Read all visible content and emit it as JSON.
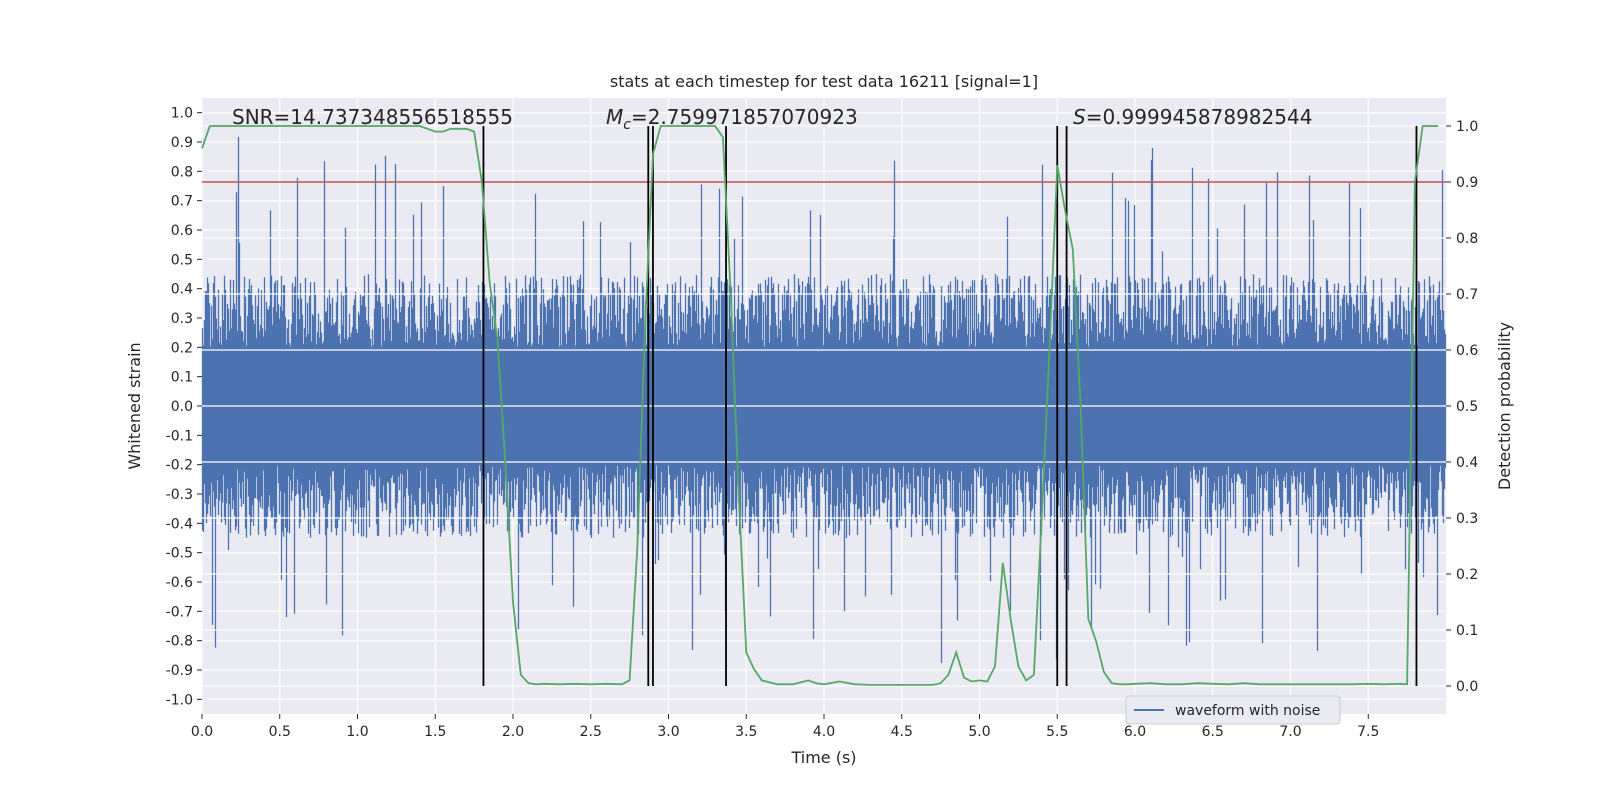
{
  "chart_data": {
    "type": "line",
    "title": "stats at each timestep for test data 16211 [signal=1]",
    "xlabel": "Time (s)",
    "ylabel_left": "Whitened strain",
    "ylabel_right": "Detection probability",
    "xlim": [
      0.0,
      8.0
    ],
    "ylim_left": [
      -1.05,
      1.05
    ],
    "ylim_right": [
      -0.05,
      1.05
    ],
    "x_ticks": [
      "0.0",
      "0.5",
      "1.0",
      "1.5",
      "2.0",
      "2.5",
      "3.0",
      "3.5",
      "4.0",
      "4.5",
      "5.0",
      "5.5",
      "6.0",
      "6.5",
      "7.0",
      "7.5"
    ],
    "y_ticks_left": [
      "1.0",
      "0.9",
      "0.8",
      "0.7",
      "0.6",
      "0.5",
      "0.4",
      "0.3",
      "0.2",
      "0.1",
      "0.0",
      "-0.1",
      "-0.2",
      "-0.3",
      "-0.4",
      "-0.5",
      "-0.6",
      "-0.7",
      "-0.8",
      "-0.9",
      "-1.0"
    ],
    "y_ticks_right": [
      "1.0",
      "0.9",
      "0.8",
      "0.7",
      "0.6",
      "0.5",
      "0.4",
      "0.3",
      "0.2",
      "0.1",
      "0.0"
    ],
    "grid": true,
    "legend_position": "lower-right",
    "annotations": {
      "snr": "SNR=14.737348556518555",
      "mc_symbol": "M",
      "mc_sub": "c",
      "mc_value": "=2.759971857070923",
      "s_symbol": "S",
      "s_value": "=0.999945878982544"
    },
    "series": [
      {
        "name": "waveform with noise",
        "axis": "left",
        "color": "#4c72b0",
        "style": "dense noise",
        "envelope_typical": [
          -0.45,
          0.45
        ]
      },
      {
        "axis": "right",
        "color": "#55a868",
        "x": [
          0.0,
          0.05,
          0.1,
          0.2,
          0.3,
          0.4,
          0.5,
          0.6,
          0.7,
          0.8,
          0.9,
          1.0,
          1.1,
          1.2,
          1.3,
          1.4,
          1.5,
          1.55,
          1.6,
          1.7,
          1.75,
          1.8,
          1.85,
          1.9,
          1.95,
          2.0,
          2.05,
          2.1,
          2.15,
          2.2,
          2.3,
          2.4,
          2.5,
          2.6,
          2.7,
          2.75,
          2.8,
          2.85,
          2.9,
          2.95,
          3.0,
          3.1,
          3.2,
          3.3,
          3.35,
          3.4,
          3.45,
          3.5,
          3.55,
          3.6,
          3.7,
          3.8,
          3.9,
          3.95,
          4.0,
          4.1,
          4.2,
          4.3,
          4.4,
          4.5,
          4.6,
          4.7,
          4.75,
          4.8,
          4.85,
          4.9,
          4.95,
          5.0,
          5.05,
          5.1,
          5.15,
          5.2,
          5.25,
          5.3,
          5.35,
          5.4,
          5.45,
          5.5,
          5.55,
          5.6,
          5.65,
          5.7,
          5.75,
          5.8,
          5.85,
          5.9,
          5.95,
          6.0,
          6.1,
          6.2,
          6.3,
          6.4,
          6.5,
          6.6,
          6.7,
          6.8,
          6.9,
          7.0,
          7.1,
          7.2,
          7.3,
          7.4,
          7.5,
          7.6,
          7.7,
          7.75,
          7.8,
          7.85,
          7.9,
          7.95
        ],
        "values": [
          0.96,
          1.0,
          1.0,
          1.0,
          1.0,
          1.0,
          1.0,
          1.0,
          1.0,
          1.0,
          1.0,
          1.0,
          1.0,
          1.0,
          1.0,
          1.0,
          0.99,
          0.99,
          0.995,
          0.995,
          0.99,
          0.9,
          0.72,
          0.62,
          0.4,
          0.15,
          0.02,
          0.005,
          0.003,
          0.004,
          0.003,
          0.004,
          0.003,
          0.004,
          0.003,
          0.01,
          0.25,
          0.65,
          0.95,
          1.0,
          1.0,
          1.0,
          1.0,
          1.0,
          0.98,
          0.7,
          0.35,
          0.06,
          0.03,
          0.01,
          0.003,
          0.003,
          0.01,
          0.005,
          0.003,
          0.008,
          0.003,
          0.002,
          0.002,
          0.002,
          0.002,
          0.002,
          0.005,
          0.02,
          0.06,
          0.015,
          0.008,
          0.01,
          0.008,
          0.035,
          0.22,
          0.12,
          0.035,
          0.01,
          0.02,
          0.3,
          0.6,
          0.93,
          0.85,
          0.78,
          0.5,
          0.12,
          0.08,
          0.025,
          0.005,
          0.003,
          0.003,
          0.004,
          0.005,
          0.003,
          0.003,
          0.005,
          0.004,
          0.003,
          0.005,
          0.003,
          0.003,
          0.003,
          0.003,
          0.003,
          0.003,
          0.003,
          0.004,
          0.003,
          0.004,
          0.003,
          0.9,
          1.0,
          1.0,
          1.0
        ]
      }
    ],
    "threshold_line": {
      "axis": "right",
      "value": 0.9,
      "color": "#c44e52"
    },
    "vertical_lines_x": [
      1.81,
      2.87,
      2.9,
      3.37,
      5.5,
      5.56,
      7.81
    ],
    "vertical_line_color": "#000000"
  }
}
